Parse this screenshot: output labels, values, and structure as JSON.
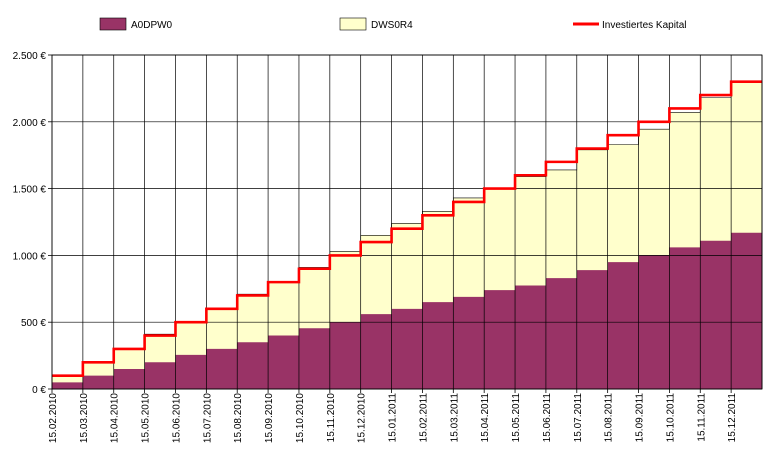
{
  "chart_data": {
    "type": "area",
    "stacked": true,
    "legend_position": "top",
    "grid": "horizontal and vertical",
    "ylim": [
      0,
      2500
    ],
    "y_ticks": [
      0,
      500,
      1000,
      1500,
      2000,
      2500
    ],
    "y_tick_labels": [
      "0 €",
      "500 €",
      "1.000 €",
      "1.500 €",
      "2.000 €",
      "2.500 €"
    ],
    "x_tick_labels": [
      "15.02.2010",
      "15.03.2010",
      "15.04.2010",
      "15.05.2010",
      "15.06.2010",
      "15.07.2010",
      "15.08.2010",
      "15.09.2010",
      "15.10.2010",
      "15.11.2010",
      "15.12.2010",
      "15.01.2011",
      "15.02.2011",
      "15.03.2011",
      "15.04.2011",
      "15.05.2011",
      "15.06.2011",
      "15.07.2011",
      "15.08.2011",
      "15.09.2011",
      "15.10.2011",
      "15.11.2011",
      "15.12.2011"
    ],
    "series": [
      {
        "name": "A0DPW0",
        "kind": "area",
        "color": "#993366",
        "values": [
          50,
          100,
          150,
          200,
          255,
          300,
          350,
          400,
          455,
          500,
          560,
          600,
          650,
          690,
          740,
          775,
          830,
          890,
          950,
          1000,
          1060,
          1110,
          1170,
          1200
        ]
      },
      {
        "name": "DWS0R4",
        "kind": "area",
        "color": "#ffffcc",
        "values": [
          50,
          100,
          150,
          210,
          250,
          300,
          360,
          400,
          455,
          530,
          590,
          640,
          680,
          740,
          765,
          815,
          810,
          900,
          880,
          945,
          1010,
          1070,
          1130,
          1170
        ]
      },
      {
        "name": "Investiertes Kapital",
        "kind": "line",
        "color": "#ff0000",
        "values": [
          100,
          200,
          300,
          400,
          500,
          600,
          700,
          800,
          900,
          1000,
          1100,
          1200,
          1300,
          1400,
          1500,
          1600,
          1700,
          1800,
          1900,
          2000,
          2100,
          2200,
          2300,
          2300
        ]
      }
    ]
  }
}
